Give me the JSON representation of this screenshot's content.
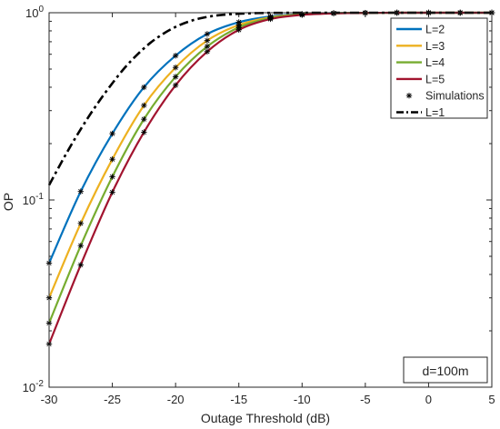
{
  "chart_data": {
    "type": "line",
    "title": "",
    "xlabel": "Outage Threshold (dB)",
    "ylabel": "OP",
    "yscale": "log",
    "xlim": [
      -30,
      5
    ],
    "ylim": [
      0.01,
      1
    ],
    "xticks": [
      -30,
      -25,
      -20,
      -15,
      -10,
      -5,
      0,
      5
    ],
    "xtick_labels": [
      "-30",
      "-25",
      "-20",
      "-15",
      "-10",
      "-5",
      "0",
      "5"
    ],
    "yticks": [
      {
        "value": 0.01,
        "base": "10",
        "exp": "-2"
      },
      {
        "value": 0.1,
        "base": "10",
        "exp": "-1"
      },
      {
        "value": 1,
        "base": "10",
        "exp": "0"
      }
    ],
    "grid": false,
    "legend_position": "top-right",
    "annotation": "d=100m",
    "series": [
      {
        "name": "L=2",
        "color": "#0072BD",
        "style": "solid",
        "x": [
          -30,
          -27.5,
          -25,
          -22.5,
          -20,
          -17.5,
          -15,
          -12.5,
          -10,
          -7.5,
          -5,
          -2.5,
          0,
          2.5,
          5
        ],
        "y": [
          0.046,
          0.111,
          0.226,
          0.4,
          0.59,
          0.77,
          0.89,
          0.955,
          0.984,
          0.995,
          0.998,
          1.0,
          1.0,
          1.0,
          1.0
        ]
      },
      {
        "name": "L=3",
        "color": "#EDB120",
        "style": "solid",
        "x": [
          -30,
          -27.5,
          -25,
          -22.5,
          -20,
          -17.5,
          -15,
          -12.5,
          -10,
          -7.5,
          -5,
          -2.5,
          0,
          2.5,
          5
        ],
        "y": [
          0.03,
          0.075,
          0.165,
          0.32,
          0.51,
          0.71,
          0.86,
          0.945,
          0.98,
          0.994,
          0.998,
          1.0,
          1.0,
          1.0,
          1.0
        ]
      },
      {
        "name": "L=4",
        "color": "#77AC30",
        "style": "solid",
        "x": [
          -30,
          -27.5,
          -25,
          -22.5,
          -20,
          -17.5,
          -15,
          -12.5,
          -10,
          -7.5,
          -5,
          -2.5,
          0,
          2.5,
          5
        ],
        "y": [
          0.022,
          0.057,
          0.133,
          0.27,
          0.455,
          0.66,
          0.835,
          0.935,
          0.977,
          0.993,
          0.998,
          1.0,
          1.0,
          1.0,
          1.0
        ]
      },
      {
        "name": "L=5",
        "color": "#A2142F",
        "style": "solid",
        "x": [
          -30,
          -27.5,
          -25,
          -22.5,
          -20,
          -17.5,
          -15,
          -12.5,
          -10,
          -7.5,
          -5,
          -2.5,
          0,
          2.5,
          5
        ],
        "y": [
          0.017,
          0.045,
          0.11,
          0.23,
          0.41,
          0.62,
          0.81,
          0.925,
          0.974,
          0.992,
          0.998,
          1.0,
          1.0,
          1.0,
          1.0
        ]
      },
      {
        "name": "Simulations",
        "color": "#000000",
        "style": "marker",
        "marker": "*"
      },
      {
        "name": "L=1",
        "color": "#000000",
        "style": "dashdot",
        "x": [
          -30,
          -29,
          -28,
          -27,
          -26,
          -25,
          -24,
          -23,
          -22,
          -21,
          -20,
          -19,
          -18,
          -17,
          -16,
          -15,
          -14,
          -13,
          -12,
          -11,
          -10,
          -5,
          0,
          5
        ],
        "y": [
          0.12,
          0.16,
          0.21,
          0.27,
          0.34,
          0.42,
          0.51,
          0.6,
          0.69,
          0.77,
          0.84,
          0.895,
          0.935,
          0.962,
          0.978,
          0.988,
          0.994,
          0.997,
          0.998,
          0.999,
          1.0,
          1.0,
          1.0,
          1.0
        ]
      }
    ]
  }
}
